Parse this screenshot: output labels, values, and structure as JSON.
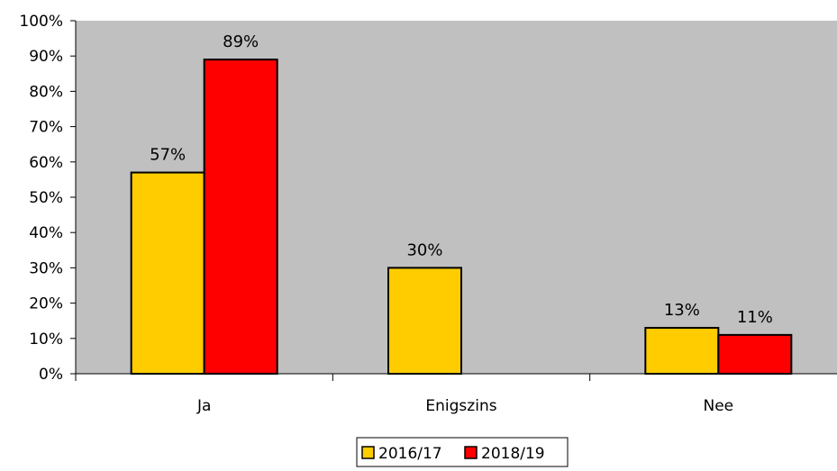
{
  "chart_data": {
    "type": "bar",
    "categories": [
      "Ja",
      "Enigszins",
      "Nee"
    ],
    "series": [
      {
        "name": "2016/17",
        "color": "#ffcc00",
        "values": [
          57,
          30,
          13
        ],
        "labels": [
          "57%",
          "30%",
          "13%"
        ]
      },
      {
        "name": "2018/19",
        "color": "#ff0000",
        "values": [
          89,
          0,
          11
        ],
        "labels": [
          "89%",
          "",
          "11%"
        ]
      }
    ],
    "y_ticks": [
      "0%",
      "10%",
      "20%",
      "30%",
      "40%",
      "50%",
      "60%",
      "70%",
      "80%",
      "90%",
      "100%"
    ],
    "ylim": [
      0,
      100
    ],
    "plot_background": "#c0c0c0",
    "grid": false,
    "legend_position": "bottom"
  }
}
